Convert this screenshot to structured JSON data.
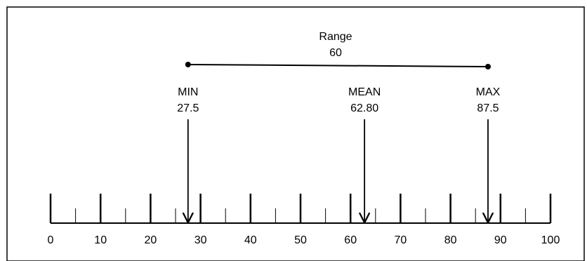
{
  "range": {
    "label": "Range",
    "value": "60"
  },
  "markers": [
    {
      "id": "min",
      "label": "MIN",
      "value": "27.5",
      "at": 27.5
    },
    {
      "id": "mean",
      "label": "MEAN",
      "value": "62.80",
      "at": 62.8
    },
    {
      "id": "max",
      "label": "MAX",
      "value": "87.5",
      "at": 87.5
    }
  ],
  "axis": {
    "min": 0,
    "max": 100,
    "major_step": 10,
    "minor_step": 5,
    "tick_labels": [
      "0",
      "10",
      "20",
      "30",
      "40",
      "50",
      "60",
      "70",
      "80",
      "90",
      "100"
    ]
  },
  "colors": {
    "ink": "#000000",
    "border": "#000000",
    "background": "#ffffff"
  }
}
